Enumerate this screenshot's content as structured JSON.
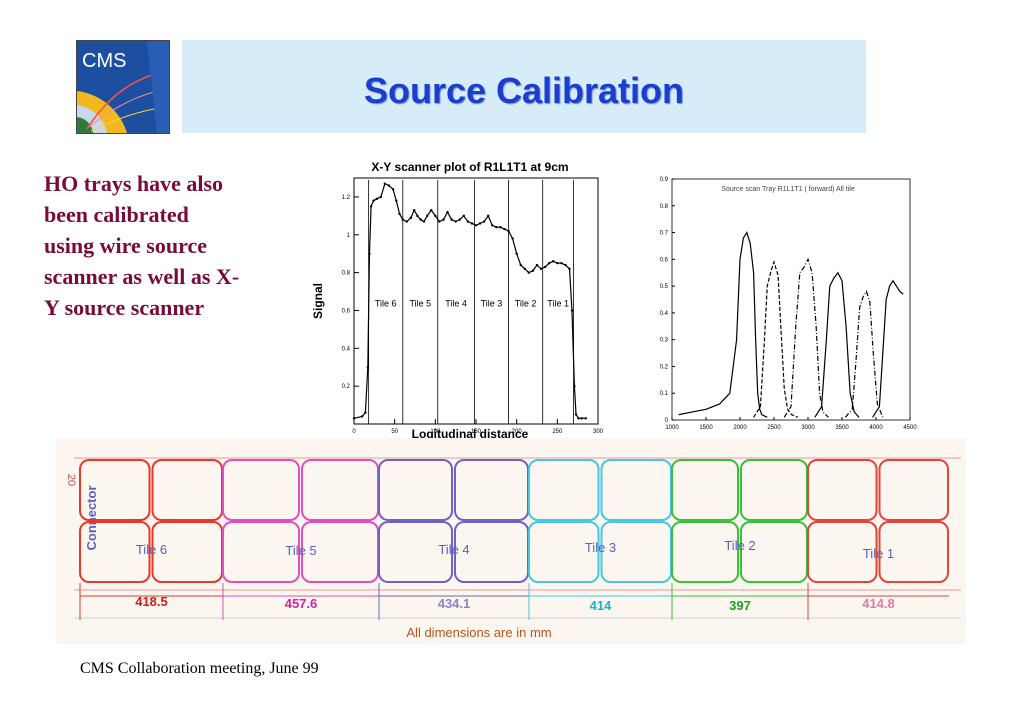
{
  "slide": {
    "logo_text": "CMS",
    "title": "Source Calibration",
    "bullet_lines": [
      "HO trays have also",
      "been calibrated",
      "using wire source",
      "scanner as well as X-",
      "Y source scanner"
    ],
    "footer": "CMS  Collaboration meeting, June 99"
  },
  "chart_data": [
    {
      "type": "line",
      "title": "X-Y scanner plot of R1L1T1 at 9cm",
      "xlabel": "Logitudinal distance",
      "ylabel": "Signal",
      "xlim": [
        0,
        300
      ],
      "ylim": [
        0,
        1.3
      ],
      "x_ticks": [
        0,
        50,
        100,
        150,
        200,
        250,
        300
      ],
      "y_ticks": [
        0.2,
        0.4,
        0.6,
        0.8,
        1,
        1.2
      ],
      "tile_labels": [
        "Tile 6",
        "Tile 5",
        "Tile 4",
        "Tile 3",
        "Tile 2",
        "Tile 1"
      ],
      "tile_dividers": [
        18,
        60,
        103,
        148,
        190,
        232,
        270
      ],
      "series": [
        {
          "x": [
            0,
            10,
            14,
            17,
            19,
            21,
            24,
            28,
            33,
            38,
            43,
            48,
            52,
            56,
            60,
            65,
            70,
            74,
            78,
            82,
            86,
            90,
            95,
            100,
            105,
            110,
            115,
            120,
            125,
            130,
            135,
            140,
            145,
            150,
            155,
            160,
            165,
            170,
            175,
            180,
            185,
            190,
            195,
            200,
            205,
            210,
            215,
            220,
            225,
            230,
            235,
            240,
            245,
            250,
            255,
            260,
            265,
            268,
            271,
            273,
            276,
            280,
            285
          ],
          "y": [
            0.03,
            0.04,
            0.06,
            0.3,
            0.9,
            1.15,
            1.18,
            1.19,
            1.2,
            1.27,
            1.26,
            1.24,
            1.18,
            1.11,
            1.08,
            1.07,
            1.09,
            1.13,
            1.1,
            1.08,
            1.07,
            1.1,
            1.13,
            1.1,
            1.07,
            1.08,
            1.12,
            1.08,
            1.07,
            1.08,
            1.1,
            1.07,
            1.06,
            1.05,
            1.06,
            1.07,
            1.1,
            1.05,
            1.04,
            1.04,
            1.03,
            1.02,
            0.98,
            0.9,
            0.84,
            0.82,
            0.8,
            0.81,
            0.84,
            0.82,
            0.83,
            0.85,
            0.86,
            0.85,
            0.85,
            0.84,
            0.82,
            0.6,
            0.2,
            0.05,
            0.03,
            0.03,
            0.03
          ]
        }
      ]
    },
    {
      "type": "line",
      "title": "Source scan Tray R1L1T1 ( forward) All tile",
      "xlim": [
        1000,
        4500
      ],
      "ylim": [
        0,
        0.9
      ],
      "x_ticks": [
        1000,
        1500,
        2000,
        2500,
        3000,
        3500,
        4000,
        4500
      ],
      "y_ticks": [
        0,
        0.1,
        0.2,
        0.3,
        0.4,
        0.5,
        0.6,
        0.7,
        0.8,
        0.9
      ],
      "series": [
        {
          "style": "solid",
          "x": [
            1100,
            1300,
            1500,
            1700,
            1850,
            1950,
            2000,
            2050,
            2100,
            2150,
            2200,
            2230,
            2260,
            2290,
            2320,
            2400
          ],
          "y": [
            0.02,
            0.03,
            0.04,
            0.06,
            0.1,
            0.3,
            0.6,
            0.68,
            0.7,
            0.66,
            0.55,
            0.3,
            0.1,
            0.04,
            0.02,
            0.01
          ]
        },
        {
          "style": "dashed",
          "x": [
            2200,
            2300,
            2360,
            2400,
            2460,
            2500,
            2560,
            2600,
            2650,
            2700,
            2760,
            2850
          ],
          "y": [
            0.01,
            0.05,
            0.3,
            0.5,
            0.56,
            0.59,
            0.54,
            0.35,
            0.12,
            0.04,
            0.02,
            0.01
          ]
        },
        {
          "style": "dashdot",
          "x": [
            2650,
            2750,
            2820,
            2880,
            2940,
            3000,
            3060,
            3120,
            3170,
            3220,
            3300
          ],
          "y": [
            0.01,
            0.05,
            0.35,
            0.55,
            0.57,
            0.6,
            0.55,
            0.35,
            0.1,
            0.03,
            0.01
          ]
        },
        {
          "style": "solid",
          "x": [
            3100,
            3200,
            3270,
            3320,
            3380,
            3440,
            3500,
            3560,
            3620,
            3680,
            3750
          ],
          "y": [
            0.01,
            0.05,
            0.3,
            0.5,
            0.53,
            0.55,
            0.52,
            0.35,
            0.1,
            0.03,
            0.01
          ]
        },
        {
          "style": "dashdot",
          "x": [
            3550,
            3650,
            3700,
            3760,
            3810,
            3860,
            3910,
            3960,
            4020,
            4100
          ],
          "y": [
            0.01,
            0.04,
            0.2,
            0.42,
            0.46,
            0.48,
            0.44,
            0.25,
            0.06,
            0.01
          ]
        },
        {
          "style": "solid",
          "x": [
            3950,
            4050,
            4100,
            4150,
            4200,
            4250,
            4300,
            4350,
            4400
          ],
          "y": [
            0.01,
            0.05,
            0.25,
            0.45,
            0.5,
            0.52,
            0.5,
            0.48,
            0.47
          ]
        }
      ]
    }
  ],
  "tray_layout": {
    "tiles": [
      {
        "label": "Tile 6",
        "dimension": "418.5",
        "color": "#e53a2a",
        "dim_color": "#c81e1e"
      },
      {
        "label": "Tile 5",
        "dimension": "457.6",
        "color": "#e04fbf",
        "dim_color": "#d61ea8"
      },
      {
        "label": "Tile 4",
        "dimension": "434.1",
        "color": "#6f62c4",
        "dim_color": "#8b7fd2"
      },
      {
        "label": "Tile 3",
        "dimension": "414",
        "color": "#48c6e6",
        "dim_color": "#17b3d6"
      },
      {
        "label": "Tile 2",
        "dimension": "397",
        "color": "#3cbf3a",
        "dim_color": "#1ea21e"
      },
      {
        "label": "Tile 1",
        "dimension": "414.8",
        "color": "#e2453a",
        "dim_color": "#e27aa6"
      }
    ],
    "side_label": "Connector",
    "left_marker": "20",
    "footnote": "All dimensions are in mm",
    "footnote_color": "#b8541e",
    "tile_label_color": "#5a5fc0"
  }
}
